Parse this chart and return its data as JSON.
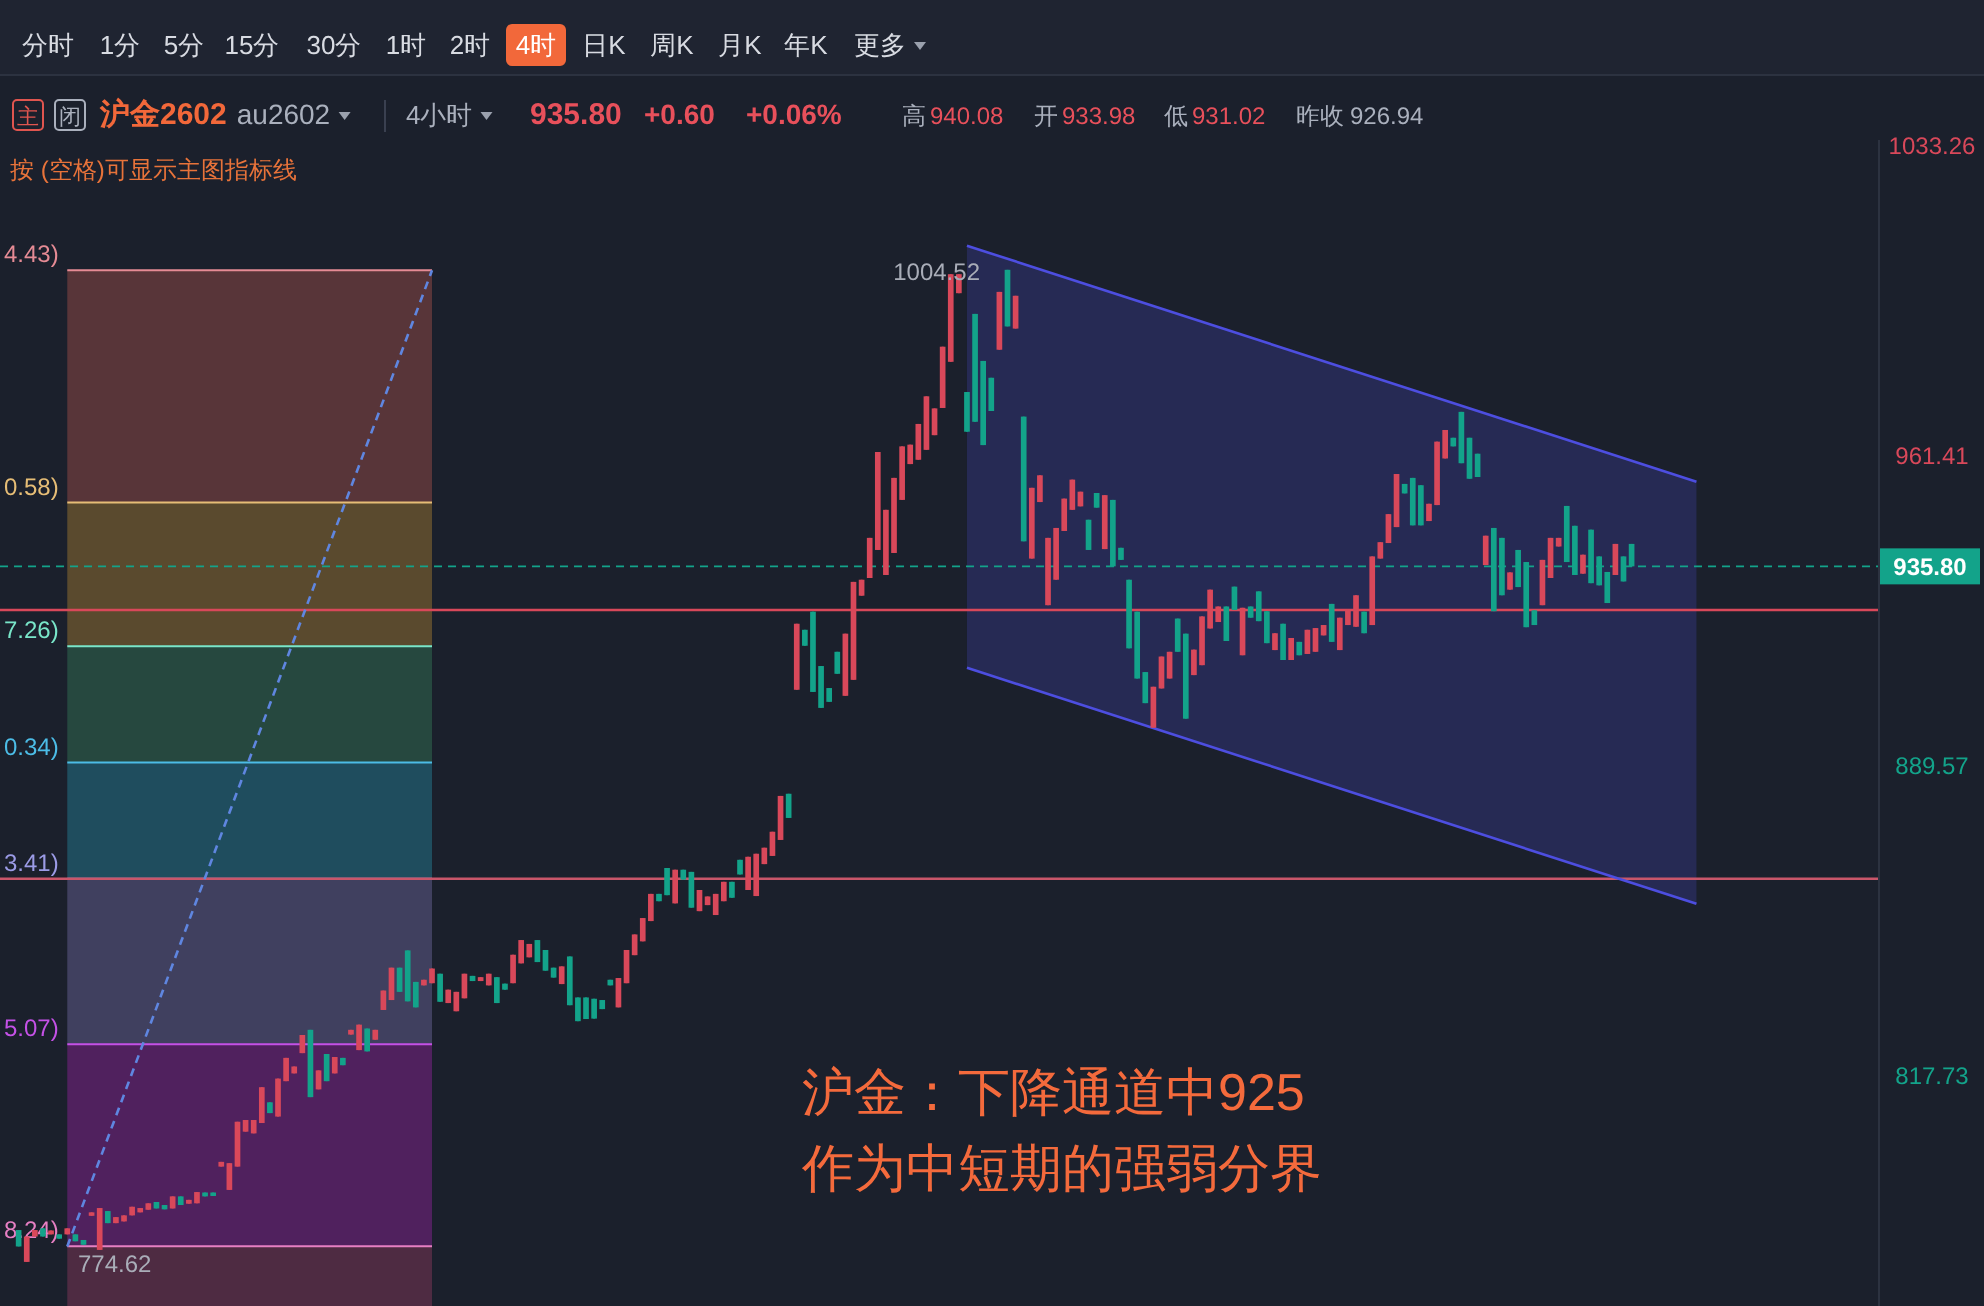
{
  "chart_data": {
    "type": "candlestick",
    "title": "沪金2602",
    "subtitle": "au2602",
    "categories": [
      null,
      null,
      null,
      null,
      null,
      null,
      null,
      null,
      null,
      null,
      null,
      null,
      null,
      null,
      null,
      null,
      null,
      null,
      null,
      null,
      null,
      null,
      null,
      null,
      null,
      null,
      null,
      null,
      null,
      null,
      null,
      null,
      null,
      null,
      null,
      null,
      null,
      null,
      null,
      null,
      null,
      null,
      null,
      null,
      null,
      null,
      null,
      null,
      null,
      null,
      null,
      null,
      null,
      null,
      null,
      null,
      null,
      null,
      null,
      null,
      null,
      null,
      null,
      null,
      null,
      null,
      null,
      null,
      null,
      null,
      null,
      null,
      null,
      null,
      null,
      null,
      null,
      null,
      null,
      null,
      null,
      null,
      null,
      null,
      null,
      null,
      null,
      null,
      null,
      null,
      null,
      null,
      null,
      null,
      null,
      null,
      null,
      null,
      null,
      null,
      null,
      null,
      null,
      null,
      null,
      null,
      null,
      null,
      null,
      null,
      null,
      null,
      null,
      null,
      null,
      null,
      null,
      null,
      null,
      null,
      null,
      null,
      null,
      null,
      null,
      null,
      null,
      null,
      null,
      null,
      null,
      null,
      null,
      null,
      null,
      null,
      null,
      null,
      null,
      null,
      null,
      null,
      null,
      null,
      null,
      null,
      null,
      null,
      null,
      null,
      null,
      null,
      null,
      null,
      null,
      null,
      null,
      null,
      null,
      null,
      null,
      null,
      null,
      null,
      null,
      null,
      null,
      null,
      null,
      null,
      null,
      null,
      null,
      null,
      null,
      null,
      null,
      null,
      null,
      null,
      null,
      null,
      null,
      null,
      null,
      null,
      null,
      null,
      null,
      null,
      null,
      null,
      null,
      null,
      null,
      null,
      null,
      null,
      null,
      null,
      null,
      null,
      null,
      null,
      null,
      null,
      null,
      null,
      null,
      null,
      null,
      null,
      null,
      null,
      null,
      null,
      null,
      null,
      null,
      null,
      null,
      null,
      null,
      null,
      null,
      null,
      null,
      null,
      null,
      null
    ],
    "ohlc": [
      [
        782.0,
        782.0,
        778.2,
        778.2
      ],
      [
        774.62,
        780.5,
        774.62,
        780.5
      ],
      [
        780.5,
        782.0,
        780.5,
        782.0
      ],
      [
        782.4,
        782.4,
        780.5,
        780.5
      ],
      [
        781.0,
        781.9,
        781.0,
        781.9
      ],
      [
        781.0,
        781.0,
        780.0,
        780.0
      ],
      [
        781.0,
        782.4,
        781.0,
        782.4
      ],
      [
        781.0,
        781.0,
        779.4,
        779.4
      ],
      [
        779.7,
        779.7,
        778.6,
        778.6
      ],
      [
        785.3,
        786.1,
        785.3,
        786.1
      ],
      [
        777.4,
        787.1,
        777.4,
        787.1
      ],
      [
        786.4,
        786.4,
        783.6,
        783.6
      ],
      [
        783.6,
        785.0,
        783.6,
        785.0
      ],
      [
        784.0,
        785.4,
        784.0,
        785.4
      ],
      [
        785.4,
        787.4,
        785.4,
        787.4
      ],
      [
        786.1,
        787.1,
        786.1,
        787.1
      ],
      [
        786.7,
        788.2,
        786.7,
        788.2
      ],
      [
        788.5,
        788.5,
        787.0,
        787.0
      ],
      [
        787.8,
        787.8,
        786.8,
        786.8
      ],
      [
        787.0,
        789.8,
        787.0,
        789.8
      ],
      [
        789.8,
        789.8,
        787.8,
        787.8
      ],
      [
        788.1,
        789.0,
        788.1,
        789.0
      ],
      [
        788.2,
        790.8,
        788.2,
        790.8
      ],
      [
        790.7,
        790.7,
        789.8,
        789.8
      ],
      [
        790.7,
        790.7,
        789.9,
        789.9
      ],
      [
        796.7,
        797.8,
        796.7,
        797.8
      ],
      [
        791.3,
        797.5,
        791.3,
        797.5
      ],
      [
        796.7,
        807.1,
        796.7,
        807.1
      ],
      [
        804.8,
        807.5,
        804.8,
        807.5
      ],
      [
        804.4,
        807.5,
        804.4,
        807.5
      ],
      [
        806.8,
        815.1,
        806.8,
        815.1
      ],
      [
        811.6,
        811.6,
        809.1,
        809.1
      ],
      [
        808.3,
        817.1,
        808.3,
        817.1
      ],
      [
        816.5,
        821.9,
        816.5,
        821.9
      ],
      [
        818.3,
        819.9,
        818.3,
        819.9
      ],
      [
        823.0,
        827.2,
        823.0,
        827.2
      ],
      [
        828.4,
        828.4,
        812.8,
        812.8
      ],
      [
        814.6,
        819.0,
        814.6,
        819.0
      ],
      [
        822.8,
        822.8,
        816.5,
        816.5
      ],
      [
        818.3,
        822.1,
        818.3,
        822.1
      ],
      [
        821.9,
        821.9,
        820.2,
        820.2
      ],
      [
        827.3,
        828.4,
        827.3,
        828.4
      ],
      [
        823.7,
        829.6,
        823.7,
        829.6
      ],
      [
        828.7,
        828.7,
        823.4,
        823.4
      ],
      [
        826.1,
        828.4,
        826.1,
        828.4
      ],
      [
        833.0,
        837.5,
        833.0,
        837.5
      ],
      [
        835.3,
        842.8,
        835.3,
        842.8
      ],
      [
        842.8,
        842.8,
        837.2,
        837.2
      ],
      [
        846.8,
        846.8,
        835.0,
        835.0
      ],
      [
        839.5,
        839.5,
        833.6,
        833.6
      ],
      [
        838.7,
        840.0,
        838.7,
        840.0
      ],
      [
        839.2,
        842.6,
        839.2,
        842.6
      ],
      [
        841.4,
        841.4,
        834.9,
        834.9
      ],
      [
        834.6,
        837.7,
        834.6,
        837.7
      ],
      [
        832.7,
        837.2,
        832.7,
        837.2
      ],
      [
        835.7,
        841.4,
        835.7,
        841.4
      ],
      [
        840.9,
        840.9,
        839.7,
        839.7
      ],
      [
        839.7,
        840.6,
        839.7,
        840.6
      ],
      [
        838.7,
        841.4,
        838.7,
        841.4
      ],
      [
        840.6,
        840.6,
        834.6,
        834.6
      ],
      [
        839.1,
        839.1,
        837.7,
        837.7
      ],
      [
        839.2,
        845.8,
        839.2,
        845.8
      ],
      [
        843.8,
        849.2,
        843.8,
        849.2
      ],
      [
        845.2,
        848.3,
        845.2,
        848.3
      ],
      [
        849.2,
        849.2,
        844.1,
        844.1
      ],
      [
        846.9,
        846.9,
        842.1,
        842.1
      ],
      [
        842.8,
        842.8,
        840.5,
        840.5
      ],
      [
        839.0,
        843.1,
        839.0,
        843.1
      ],
      [
        845.4,
        845.4,
        834.1,
        834.1
      ],
      [
        835.9,
        835.9,
        830.4,
        830.4
      ],
      [
        835.9,
        835.9,
        830.9,
        830.9
      ],
      [
        835.6,
        835.6,
        831.0,
        831.0
      ],
      [
        835.3,
        835.3,
        833.2,
        833.2
      ],
      [
        840.0,
        840.0,
        838.7,
        838.7
      ],
      [
        833.6,
        840.4,
        833.6,
        840.4
      ],
      [
        839.2,
        846.9,
        839.2,
        846.9
      ],
      [
        845.7,
        850.5,
        845.7,
        850.5
      ],
      [
        848.9,
        854.3,
        848.9,
        854.3
      ],
      [
        853.6,
        859.9,
        853.6,
        859.9
      ],
      [
        859.9,
        859.9,
        858.2,
        858.2
      ],
      [
        865.9,
        865.9,
        859.6,
        859.6
      ],
      [
        857.7,
        865.5,
        857.7,
        865.5
      ],
      [
        865.5,
        865.5,
        863.2,
        863.2
      ],
      [
        865.0,
        865.0,
        856.7,
        856.7
      ],
      [
        855.9,
        860.8,
        855.9,
        860.8
      ],
      [
        857.3,
        859.3,
        857.3,
        859.3
      ],
      [
        855.0,
        859.9,
        855.0,
        859.9
      ],
      [
        858.2,
        862.7,
        858.2,
        862.7
      ],
      [
        862.7,
        862.7,
        859.0,
        859.0
      ],
      [
        867.8,
        867.8,
        864.4,
        864.4
      ],
      [
        860.8,
        868.5,
        860.8,
        868.5
      ],
      [
        859.4,
        869.2,
        859.4,
        869.2
      ],
      [
        866.8,
        870.6,
        866.8,
        870.6
      ],
      [
        868.7,
        874.3,
        868.7,
        874.3
      ],
      [
        872.4,
        882.6,
        872.4,
        882.6
      ],
      [
        883.1,
        883.1,
        877.5,
        877.5
      ],
      [
        907.2,
        922.5,
        907.2,
        922.5
      ],
      [
        921.1,
        921.1,
        917.4,
        917.4
      ],
      [
        925.3,
        925.3,
        906.7,
        906.7
      ],
      [
        912.7,
        912.7,
        903.0,
        903.0
      ],
      [
        907.6,
        907.6,
        904.4,
        904.4
      ],
      [
        916.0,
        916.0,
        910.9,
        910.9
      ],
      [
        905.8,
        920.2,
        905.8,
        920.2
      ],
      [
        909.5,
        932.2,
        909.5,
        932.2
      ],
      [
        929.0,
        932.7,
        929.0,
        932.7
      ],
      [
        933.1,
        942.4,
        933.1,
        942.4
      ],
      [
        939.6,
        962.3,
        939.6,
        962.3
      ],
      [
        933.8,
        948.9,
        933.8,
        948.9
      ],
      [
        938.9,
        956.3,
        938.9,
        956.3
      ],
      [
        951.2,
        963.6,
        951.2,
        963.6
      ],
      [
        959.5,
        964.0,
        959.5,
        964.0
      ],
      [
        960.5,
        968.8,
        960.5,
        968.8
      ],
      [
        962.8,
        975.2,
        962.8,
        975.2
      ],
      [
        966.2,
        972.4,
        966.2,
        972.4
      ],
      [
        972.5,
        986.7,
        972.5,
        986.7
      ],
      [
        983.2,
        1003.5,
        983.2,
        1003.5
      ],
      [
        999.1,
        1003.5,
        999.1,
        1003.5
      ],
      [
        976.2,
        976.2,
        967.0,
        967.0
      ],
      [
        994.3,
        994.3,
        969.3,
        969.3
      ],
      [
        983.4,
        983.4,
        963.9,
        963.9
      ],
      [
        979.5,
        979.5,
        971.8,
        971.8
      ],
      [
        986.0,
        999.4,
        986.0,
        999.4
      ],
      [
        1004.52,
        1004.52,
        991.4,
        991.4
      ],
      [
        990.9,
        998.5,
        990.9,
        998.5
      ],
      [
        970.5,
        970.5,
        941.6,
        941.6
      ],
      [
        937.6,
        954.0,
        937.6,
        954.0
      ],
      [
        950.7,
        956.9,
        950.7,
        956.9
      ],
      [
        926.8,
        942.4,
        926.8,
        942.4
      ],
      [
        932.7,
        944.7,
        932.7,
        944.7
      ],
      [
        944.0,
        951.5,
        944.0,
        951.5
      ],
      [
        948.9,
        955.9,
        948.9,
        955.9
      ],
      [
        949.7,
        953.1,
        949.7,
        953.1
      ],
      [
        946.6,
        946.6,
        939.6,
        939.6
      ],
      [
        952.8,
        952.8,
        949.4,
        949.4
      ],
      [
        939.8,
        952.3,
        939.8,
        952.3
      ],
      [
        951.2,
        951.2,
        935.8,
        935.8
      ],
      [
        940.1,
        940.1,
        937.3,
        937.3
      ],
      [
        932.7,
        932.7,
        916.8,
        916.8
      ],
      [
        925.3,
        925.3,
        909.8,
        909.8
      ],
      [
        911.3,
        911.3,
        904.1,
        904.1
      ],
      [
        898.4,
        907.9,
        898.4,
        907.9
      ],
      [
        907.5,
        914.9,
        907.5,
        914.9
      ],
      [
        909.8,
        916.0,
        909.8,
        916.0
      ],
      [
        923.7,
        923.7,
        916.0,
        916.0
      ],
      [
        920.2,
        920.2,
        900.5,
        900.5
      ],
      [
        910.6,
        916.5,
        910.6,
        916.5
      ],
      [
        912.9,
        924.2,
        912.9,
        924.2
      ],
      [
        921.4,
        930.4,
        921.4,
        930.4
      ],
      [
        922.9,
        926.5,
        922.9,
        926.5
      ],
      [
        926.5,
        926.5,
        918.5,
        918.5
      ],
      [
        931.1,
        931.1,
        925.7,
        925.7
      ],
      [
        915.2,
        926.2,
        915.2,
        926.2
      ],
      [
        926.5,
        926.5,
        923.9,
        923.9
      ],
      [
        930.0,
        930.0,
        923.1,
        923.1
      ],
      [
        925.4,
        925.4,
        918.0,
        918.0
      ],
      [
        916.4,
        920.3,
        916.4,
        920.3
      ],
      [
        922.5,
        922.5,
        914.1,
        914.1
      ],
      [
        914.1,
        919.2,
        914.1,
        919.2
      ],
      [
        918.3,
        918.3,
        915.2,
        915.2
      ],
      [
        915.5,
        921.1,
        915.5,
        921.1
      ],
      [
        916.0,
        921.5,
        916.0,
        921.5
      ],
      [
        919.8,
        922.2,
        919.8,
        922.2
      ],
      [
        927.1,
        927.1,
        918.3,
        918.3
      ],
      [
        916.4,
        923.9,
        916.4,
        923.9
      ],
      [
        922.2,
        925.7,
        922.2,
        925.7
      ],
      [
        921.8,
        929.1,
        921.8,
        929.1
      ],
      [
        925.3,
        925.3,
        920.3,
        920.3
      ],
      [
        922.2,
        938.1,
        922.2,
        938.1
      ],
      [
        937.6,
        941.4,
        937.6,
        941.4
      ],
      [
        941.2,
        947.9,
        941.2,
        947.9
      ],
      [
        944.9,
        957.2,
        944.9,
        957.2
      ],
      [
        954.9,
        954.9,
        952.7,
        952.7
      ],
      [
        956.3,
        956.3,
        945.3,
        945.3
      ],
      [
        954.6,
        954.6,
        945.3,
        945.3
      ],
      [
        946.3,
        950.3,
        946.3,
        950.3
      ],
      [
        950.0,
        964.7,
        950.0,
        964.7
      ],
      [
        960.8,
        967.4,
        960.8,
        967.4
      ],
      [
        965.6,
        965.6,
        963.6,
        963.6
      ],
      [
        971.6,
        971.6,
        959.7,
        959.7
      ],
      [
        965.6,
        965.6,
        956.1,
        956.1
      ],
      [
        961.9,
        961.9,
        956.5,
        956.5
      ],
      [
        936.1,
        942.9,
        936.1,
        942.9
      ],
      [
        944.7,
        944.7,
        925.4,
        925.4
      ],
      [
        942.4,
        942.4,
        929.1,
        929.1
      ],
      [
        930.4,
        934.4,
        930.4,
        934.4
      ],
      [
        939.6,
        939.6,
        931.0,
        931.0
      ],
      [
        936.8,
        936.8,
        921.7,
        921.7
      ],
      [
        925.6,
        925.6,
        922.2,
        922.2
      ],
      [
        926.8,
        937.3,
        926.8,
        937.3
      ],
      [
        933.1,
        942.4,
        933.1,
        942.4
      ],
      [
        940.4,
        942.4,
        940.4,
        942.4
      ],
      [
        949.8,
        949.8,
        936.8,
        936.8
      ],
      [
        945.2,
        945.2,
        933.8,
        933.8
      ],
      [
        934.1,
        938.5,
        934.1,
        938.5
      ],
      [
        944.3,
        944.3,
        931.9,
        931.9
      ],
      [
        938.1,
        938.1,
        931.4,
        931.4
      ],
      [
        934.5,
        934.5,
        927.3,
        927.3
      ],
      [
        933.8,
        941.0,
        933.8,
        941.0
      ],
      [
        938.1,
        938.1,
        932.3,
        932.3
      ],
      [
        941.0,
        941.0,
        935.8,
        935.8
      ],
      null,
      null,
      null,
      null,
      null,
      null,
      null,
      null,
      null,
      null,
      null,
      null,
      null,
      null,
      null,
      null,
      null,
      null,
      null,
      null,
      null,
      null,
      null,
      null,
      null,
      null,
      null,
      null,
      null,
      null
    ],
    "series": [
      {
        "type": "line",
        "color": "#4d4ee0",
        "values": [
          null,
          null,
          null,
          null,
          null,
          null,
          null,
          null,
          null,
          null,
          null,
          null,
          null,
          null,
          null,
          null,
          null,
          null,
          null,
          null,
          null,
          null,
          null,
          null,
          null,
          null,
          null,
          null,
          null,
          null,
          null,
          null,
          null,
          null,
          null,
          null,
          null,
          null,
          null,
          null,
          null,
          null,
          null,
          null,
          null,
          null,
          null,
          null,
          null,
          null,
          null,
          null,
          null,
          null,
          null,
          null,
          null,
          null,
          null,
          null,
          null,
          null,
          null,
          null,
          null,
          null,
          null,
          null,
          null,
          null,
          null,
          null,
          null,
          null,
          null,
          null,
          null,
          null,
          null,
          null,
          null,
          null,
          null,
          null,
          null,
          null,
          null,
          null,
          null,
          null,
          null,
          null,
          null,
          null,
          null,
          null,
          null,
          null,
          null,
          null,
          null,
          null,
          null,
          null,
          null,
          null,
          null,
          null,
          null,
          null,
          null,
          null,
          null,
          null,
          null,
          null,
          null,
          1010.1,
          null,
          null,
          null,
          null,
          null,
          null,
          null,
          null,
          null,
          null,
          null,
          null,
          null,
          null,
          null,
          null,
          null,
          null,
          null,
          null,
          null,
          null,
          null,
          null,
          null,
          null,
          null,
          null,
          null,
          null,
          null,
          null,
          null,
          null,
          null,
          null,
          null,
          null,
          null,
          null,
          null,
          null,
          null,
          null,
          null,
          null,
          null,
          null,
          null,
          null,
          null,
          null,
          null,
          null,
          null,
          null,
          null,
          null,
          null,
          null,
          null,
          null,
          null,
          null,
          null,
          null,
          null,
          null,
          null,
          null,
          null,
          null,
          null,
          null,
          null,
          null,
          null,
          null,
          null,
          null,
          null,
          null,
          null,
          null,
          null,
          null,
          null,
          null,
          null,
          955.4,
          null,
          null,
          null,
          null,
          null,
          null,
          null,
          null,
          null,
          null,
          null,
          null,
          null,
          null,
          null,
          null,
          null,
          null,
          null,
          null,
          null,
          null
        ]
      },
      {
        "type": "line",
        "color": "#4d4ee0",
        "values": [
          null,
          null,
          null,
          null,
          null,
          null,
          null,
          null,
          null,
          null,
          null,
          null,
          null,
          null,
          null,
          null,
          null,
          null,
          null,
          null,
          null,
          null,
          null,
          null,
          null,
          null,
          null,
          null,
          null,
          null,
          null,
          null,
          null,
          null,
          null,
          null,
          null,
          null,
          null,
          null,
          null,
          null,
          null,
          null,
          null,
          null,
          null,
          null,
          null,
          null,
          null,
          null,
          null,
          null,
          null,
          null,
          null,
          null,
          null,
          null,
          null,
          null,
          null,
          null,
          null,
          null,
          null,
          null,
          null,
          null,
          null,
          null,
          null,
          null,
          null,
          null,
          null,
          null,
          null,
          null,
          null,
          null,
          null,
          null,
          null,
          null,
          null,
          null,
          null,
          null,
          null,
          null,
          null,
          null,
          null,
          null,
          null,
          null,
          null,
          null,
          null,
          null,
          null,
          null,
          null,
          null,
          null,
          null,
          null,
          null,
          null,
          null,
          null,
          null,
          null,
          null,
          null,
          912.3,
          null,
          null,
          null,
          null,
          null,
          null,
          null,
          null,
          null,
          null,
          null,
          null,
          null,
          null,
          null,
          null,
          null,
          null,
          null,
          null,
          null,
          null,
          null,
          null,
          null,
          null,
          null,
          null,
          null,
          null,
          null,
          null,
          null,
          null,
          null,
          null,
          null,
          null,
          null,
          null,
          null,
          null,
          null,
          null,
          null,
          null,
          null,
          null,
          null,
          null,
          null,
          null,
          null,
          null,
          null,
          null,
          null,
          null,
          null,
          null,
          null,
          null,
          null,
          null,
          null,
          null,
          null,
          null,
          null,
          null,
          null,
          null,
          null,
          null,
          null,
          null,
          null,
          null,
          null,
          null,
          null,
          null,
          null,
          null,
          null,
          null,
          null,
          null,
          null,
          857.6,
          null,
          null,
          null,
          null,
          null,
          null,
          null,
          null,
          null,
          null,
          null,
          null,
          null,
          null,
          null,
          null,
          null,
          null,
          null,
          null,
          null,
          null
        ]
      },
      {
        "type": "line",
        "color": "#5f86e0",
        "line_style": "dashed",
        "values": [
          null,
          null,
          null,
          null,
          null,
          null,
          778.2,
          null,
          null,
          null,
          null,
          null,
          null,
          null,
          null,
          null,
          null,
          null,
          null,
          null,
          null,
          null,
          null,
          null,
          null,
          null,
          null,
          null,
          null,
          null,
          null,
          null,
          null,
          null,
          null,
          null,
          null,
          null,
          null,
          null,
          null,
          null,
          null,
          null,
          null,
          null,
          null,
          null,
          null,
          null,
          null,
          1004.4,
          null,
          null,
          null,
          null,
          null,
          null,
          null,
          null,
          null,
          null,
          null,
          null,
          null,
          null,
          null,
          null,
          null,
          null,
          null,
          null,
          null,
          null,
          null,
          null,
          null,
          null,
          null,
          null,
          null,
          null,
          null,
          null,
          null,
          null,
          null,
          null,
          null,
          null,
          null,
          null,
          null,
          null,
          null,
          null,
          null,
          null,
          null,
          null,
          null,
          null,
          null,
          null,
          null,
          null,
          null,
          null,
          null,
          null,
          null,
          null,
          null,
          null,
          null,
          null,
          null,
          null,
          null,
          null,
          null,
          null,
          null,
          null,
          null,
          null,
          null,
          null,
          null,
          null,
          null,
          null,
          null,
          null,
          null,
          null,
          null,
          null,
          null,
          null,
          null,
          null,
          null,
          null,
          null,
          null,
          null,
          null,
          null,
          null,
          null,
          null,
          null,
          null,
          null,
          null,
          null,
          null,
          null,
          null,
          null,
          null,
          null,
          null,
          null,
          null,
          null,
          null,
          null,
          null,
          null,
          null,
          null,
          null,
          null,
          null,
          null,
          null,
          null,
          null,
          null,
          null,
          null,
          null,
          null,
          null,
          null,
          null,
          null,
          null,
          null,
          null,
          null,
          null,
          null,
          null,
          null,
          null,
          null,
          null,
          null,
          null,
          null,
          null,
          null,
          null,
          null,
          null,
          null,
          null,
          null,
          null,
          null,
          null,
          null,
          null,
          null,
          null,
          null,
          null,
          null,
          null,
          null,
          null,
          null,
          null,
          null,
          null,
          null,
          null
        ]
      }
    ],
    "ylim": [
      764.4,
      1034.6
    ],
    "yticks": [
      817.73,
      889.57,
      961.41,
      1033.26
    ],
    "tick_labels": "y",
    "bands": [
      {
        "axis": "y",
        "from": 950.58,
        "to": 1004.43,
        "label": "4.43)",
        "color": "#583539"
      },
      {
        "axis": "y",
        "from": 917.26,
        "to": 950.58,
        "label": "0.58)",
        "color": "#5a4a2e"
      },
      {
        "axis": "y",
        "from": 890.34,
        "to": 917.26,
        "label": "7.26)",
        "color": "#26483f"
      },
      {
        "axis": "y",
        "from": 863.41,
        "to": 890.34,
        "label": "0.34)",
        "color": "#1f4d5e"
      },
      {
        "axis": "y",
        "from": 825.07,
        "to": 863.41,
        "label": "3.41)",
        "color": "#40405f"
      },
      {
        "axis": "y",
        "from": 778.24,
        "to": 825.07,
        "label": "5.07)",
        "color": "#50215e"
      },
      {
        "axis": "y",
        "from": 764.4,
        "to": 778.24,
        "label": "8.24)",
        "color": "#4e2b42"
      }
    ],
    "ref_lines": [
      {
        "axis": "y",
        "value": 925.7,
        "color": "#d9485a"
      },
      {
        "axis": "y",
        "value": 863.41,
        "color": "#c9566a"
      },
      {
        "axis": "y",
        "value": 935.8,
        "label": "935.80",
        "color": "#13a38a",
        "line_style": "dashed"
      }
    ],
    "annotations": [
      "分时",
      "1分",
      "5分",
      "15分",
      "30分",
      "1时",
      "2时",
      "4时",
      "日K",
      "周K",
      "月K",
      "年K",
      "更多",
      "主",
      "闭",
      "4小时",
      "935.80",
      "+0.60",
      "+0.06%",
      "高",
      "940.08",
      "开",
      "933.98",
      "低",
      "931.02",
      "昨收",
      "926.94",
      "按 (空格)可显示主图指标线",
      "沪金：下降通道中925",
      "作为中短期的强弱分界",
      "1004.52",
      "774.62"
    ]
  }
}
